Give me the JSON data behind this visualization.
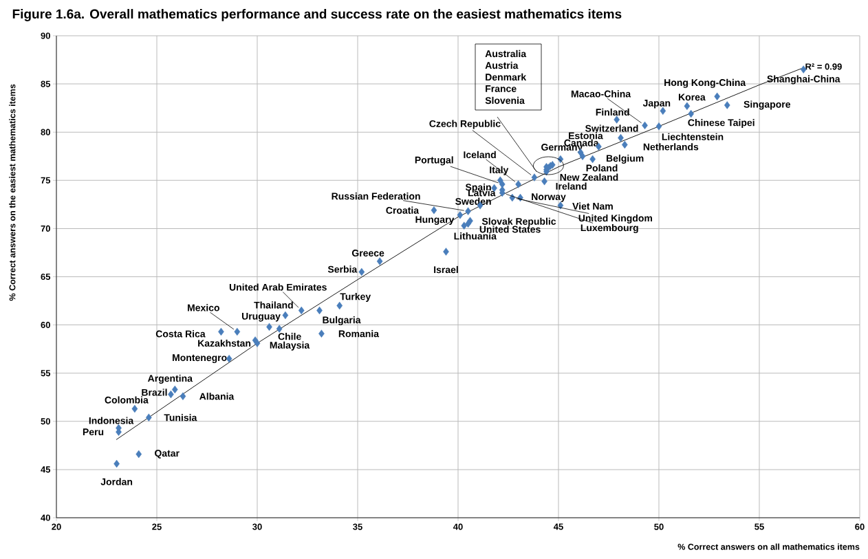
{
  "chart_data": {
    "type": "scatter",
    "title": "Figure 1.6a. Overall mathematics performance and success rate on the easiest mathematics items",
    "xlabel": "% Correct answers on all mathematics items",
    "ylabel": "% Correct answers on the easiest mathematics items",
    "xlim": [
      20,
      60
    ],
    "ylim": [
      40,
      90
    ],
    "xticks": [
      20,
      25,
      30,
      35,
      40,
      45,
      50,
      55,
      60
    ],
    "yticks": [
      40,
      45,
      50,
      55,
      60,
      65,
      70,
      75,
      80,
      85,
      90
    ],
    "grid": true,
    "marker": "diamond",
    "annotations": [
      "R² = 0.99",
      "Australia",
      "Austria",
      "Denmark",
      "France",
      "Slovenia"
    ],
    "series": [
      {
        "color": "#4a7ebb",
        "x": [
          23.0,
          24.1,
          23.1,
          23.1,
          23.9,
          24.6,
          25.7,
          25.9,
          26.3,
          28.6,
          28.2,
          29.0,
          29.9,
          30.0,
          30.6,
          31.1,
          31.4,
          32.2,
          33.1,
          34.1,
          33.2,
          35.2,
          36.1,
          39.4,
          38.8,
          40.1,
          40.5,
          41.1,
          40.6,
          40.5,
          40.3,
          41.8,
          42.2,
          42.1,
          42.2,
          42.2,
          42.7,
          43.1,
          43.0,
          43.8,
          44.3,
          44.4,
          44.6,
          44.4,
          44.5,
          44.7,
          44.4,
          45.1,
          45.1,
          46.1,
          46.2,
          46.7,
          47.0,
          48.1,
          48.3,
          47.9,
          49.3,
          50.0,
          50.2,
          51.4,
          51.6,
          52.9,
          53.4,
          57.2
        ],
        "values": [
          45.6,
          46.6,
          48.9,
          49.3,
          51.3,
          50.4,
          52.8,
          53.3,
          52.6,
          56.5,
          59.3,
          59.3,
          58.4,
          58.1,
          59.8,
          59.6,
          61.0,
          61.5,
          61.5,
          62.0,
          59.1,
          65.5,
          66.6,
          67.6,
          71.9,
          71.4,
          71.8,
          72.4,
          70.8,
          70.5,
          70.3,
          74.2,
          74.6,
          75.0,
          74.0,
          73.7,
          73.2,
          73.2,
          74.6,
          75.3,
          74.9,
          75.9,
          76.5,
          76.1,
          76.3,
          76.6,
          76.4,
          72.4,
          77.2,
          77.9,
          77.5,
          77.2,
          78.5,
          79.4,
          78.7,
          81.3,
          80.7,
          80.6,
          82.2,
          82.7,
          81.9,
          83.7,
          82.8,
          86.5
        ],
        "value_labels": [
          "Jordan",
          "Qatar",
          "Peru",
          "Indonesia",
          "Colombia",
          "Tunisia",
          "Brazil",
          "Argentina",
          "Albania",
          "Montenegro",
          "Costa Rica",
          "Mexico",
          "Kazakhstan",
          "Malaysia",
          "Uruguay",
          "Chile",
          "Thailand",
          "United Arab Emirates",
          "Bulgaria",
          "Turkey",
          "Romania",
          "Serbia",
          "Greece",
          "Israel",
          "Croatia",
          "Hungary",
          "Russian Federation",
          "Sweden",
          "Slovak Republic",
          "United States",
          "Lithuania",
          "Spain",
          "Portugal",
          "Italy",
          "Latvia",
          "Luxembourg",
          "United Kingdom",
          "Norway",
          "Iceland",
          "Czech Republic",
          "Ireland",
          "New Zealand",
          null,
          null,
          null,
          null,
          null,
          "Viet Nam",
          "Germany",
          "Canada",
          "Poland",
          "Belgium",
          "Estonia",
          "Switzerland",
          "Netherlands",
          "Finland",
          "Macao-China",
          "Liechtenstein",
          "Japan",
          "Korea",
          "Chinese Taipei",
          "Hong Kong-China",
          "Singapore",
          "Shanghai-China"
        ]
      },
      {
        "type": "line",
        "color": "#000000",
        "marker": "none",
        "x": [
          22.98,
          30,
          35,
          40,
          45,
          50,
          55,
          57.1
        ],
        "values": [
          48.1,
          58.1,
          64.7,
          71.2,
          76.4,
          80.6,
          84.9,
          86.6
        ]
      }
    ]
  }
}
